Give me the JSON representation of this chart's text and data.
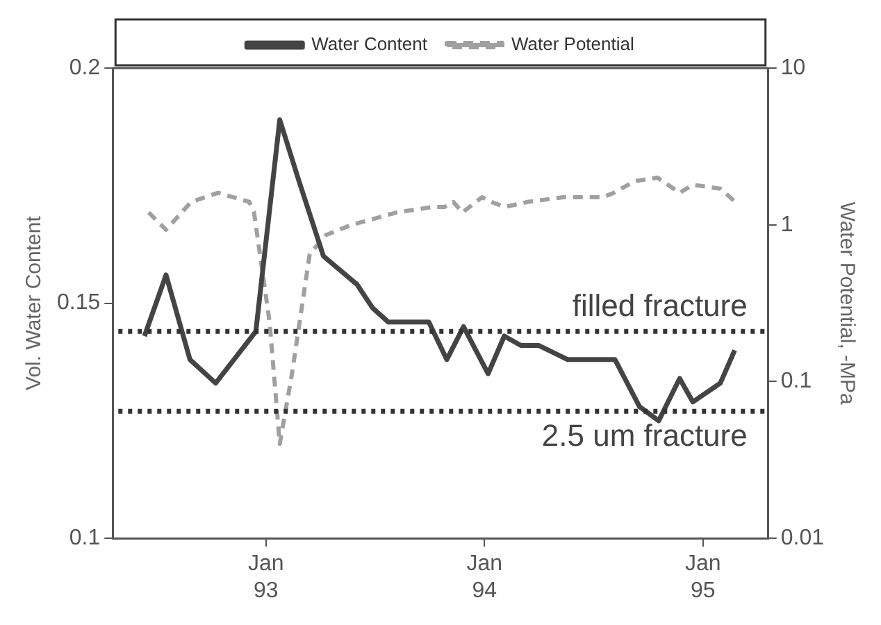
{
  "chart_data": {
    "type": "line",
    "ylabel": "Vol. Water Content",
    "y2label": "Water Potential, -MPa",
    "xlim": [
      "1992-04-20",
      "1995-04-20"
    ],
    "xticks": [
      {
        "value": "1993-01-01",
        "label": "Jan 93"
      },
      {
        "value": "1994-01-01",
        "label": "Jan 94"
      },
      {
        "value": "1995-01-01",
        "label": "Jan 95"
      }
    ],
    "ylim": [
      0.1,
      0.2
    ],
    "yticks": [
      0.1,
      0.15,
      0.2
    ],
    "y2lim": [
      0.01,
      10
    ],
    "y2ticks": [
      0.01,
      0.1,
      1,
      10
    ],
    "log": "y2",
    "grid": false,
    "legend": "top",
    "marker": "none",
    "series": [
      {
        "name": "Water Content",
        "color": "#444444",
        "line_style": "solid",
        "x": [
          "1992-06-12",
          "1992-07-18",
          "1992-08-27",
          "1992-10-09",
          "1992-12-15",
          "1993-01-24",
          "1993-02-25",
          "1993-04-07",
          "1993-06-02",
          "1993-06-28",
          "1993-07-24",
          "1993-09-30",
          "1993-10-30",
          "1993-11-27",
          "1994-01-07",
          "1994-02-03",
          "1994-03-03",
          "1994-04-02",
          "1994-05-20",
          "1994-08-07",
          "1994-09-17",
          "1994-10-19",
          "1994-11-23",
          "1994-12-15",
          "1995-01-30",
          "1995-02-23"
        ],
        "values": [
          0.143,
          0.156,
          0.138,
          0.133,
          0.144,
          0.189,
          0.176,
          0.16,
          0.154,
          0.149,
          0.146,
          0.146,
          0.138,
          0.145,
          0.135,
          0.143,
          0.141,
          0.141,
          0.138,
          0.138,
          0.128,
          0.125,
          0.134,
          0.129,
          0.133,
          0.14
        ]
      },
      {
        "name": "Water Potential",
        "color": "#a0a0a0",
        "line_style": "dashed",
        "axis": "y2",
        "x": [
          "1992-06-19",
          "1992-07-18",
          "1992-08-29",
          "1992-10-13",
          "1992-12-04",
          "1992-12-12",
          "1993-01-07",
          "1993-01-24",
          "1993-02-13",
          "1993-03-15",
          "1993-04-11",
          "1993-05-24",
          "1993-08-08",
          "1993-10-07",
          "1993-10-26",
          "1993-11-10",
          "1993-11-25",
          "1993-12-28",
          "1994-01-12",
          "1994-02-04",
          "1994-03-14",
          "1994-05-13",
          "1994-07-18",
          "1994-08-05",
          "1994-09-09",
          "1994-10-17",
          "1994-11-23",
          "1994-12-15",
          "1995-01-30",
          "1995-02-24"
        ],
        "values": [
          1.2,
          0.93,
          1.4,
          1.6,
          1.4,
          1.2,
          0.24,
          0.04,
          0.11,
          0.65,
          0.86,
          1.0,
          1.2,
          1.3,
          1.3,
          1.4,
          1.2,
          1.5,
          1.4,
          1.3,
          1.4,
          1.5,
          1.5,
          1.6,
          1.9,
          2.0,
          1.6,
          1.8,
          1.7,
          1.4
        ]
      }
    ],
    "ref_lines": [
      {
        "axis": "y",
        "value": 0.144,
        "label": "filled fracture",
        "color": "#333333",
        "line_style": "dotted"
      },
      {
        "axis": "y",
        "value": 0.127,
        "label": "2.5 um fracture",
        "color": "#333333",
        "line_style": "dotted"
      }
    ]
  }
}
